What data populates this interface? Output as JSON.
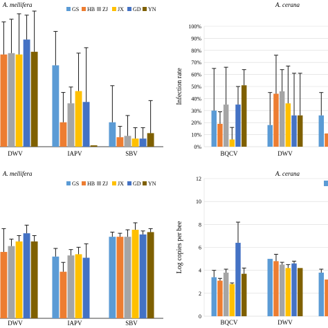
{
  "palette": {
    "GS": "#5b9bd5",
    "HB": "#ed7d31",
    "ZJ": "#a5a5a5",
    "JX": "#ffc000",
    "GD": "#4472c4",
    "YN": "#7f6000"
  },
  "chart_data": [
    {
      "id": "a",
      "type": "bar",
      "title": "A. mellifera",
      "ylabel": "",
      "ylim": [
        0,
        100
      ],
      "yticks": [],
      "legend": [
        "GS",
        "HB",
        "ZJ",
        "JX",
        "GD",
        "YN"
      ],
      "legend_position": "top-right",
      "categories": [
        "DWV",
        "IAPV",
        "SBV"
      ],
      "series": [
        {
          "name": "GS",
          "values": [
            62,
            60,
            18
          ],
          "errors": [
            37,
            25,
            27
          ]
        },
        {
          "name": "HB",
          "values": [
            68,
            18,
            7
          ],
          "errors": [
            24,
            22,
            8
          ]
        },
        {
          "name": "ZJ",
          "values": [
            69,
            32,
            8
          ],
          "errors": [
            25,
            12,
            15
          ]
        },
        {
          "name": "JX",
          "values": [
            68,
            41,
            6
          ],
          "errors": [
            30,
            28,
            8
          ]
        },
        {
          "name": "GD",
          "values": [
            79,
            33,
            6
          ],
          "errors": [
            18,
            40,
            8
          ]
        },
        {
          "name": "YN",
          "values": [
            70,
            1,
            10
          ],
          "errors": [
            30,
            0,
            24
          ]
        }
      ]
    },
    {
      "id": "b",
      "type": "bar",
      "title": "A. cerana",
      "ylabel": "Infection rate",
      "ylim": [
        0,
        100
      ],
      "yticks": [
        "0%",
        "10%",
        "20%",
        "30%",
        "40%",
        "50%",
        "60%",
        "70%",
        "80%",
        "90%",
        "100%"
      ],
      "legend": [],
      "categories": [
        "BQCV",
        "DWV",
        ""
      ],
      "series": [
        {
          "name": "",
          "values": [
            30,
            18,
            26
          ],
          "errors": [
            35,
            27,
            19
          ]
        },
        {
          "name": "",
          "values": [
            19,
            44,
            11
          ],
          "errors": [
            10,
            32,
            0
          ]
        },
        {
          "name": "",
          "values": [
            35,
            46,
            0
          ],
          "errors": [
            31,
            18,
            0
          ]
        },
        {
          "name": "",
          "values": [
            6,
            36,
            0
          ],
          "errors": [
            10,
            31,
            0
          ]
        },
        {
          "name": "",
          "values": [
            35,
            26,
            0
          ],
          "errors": [
            15,
            35,
            0
          ]
        },
        {
          "name": "",
          "values": [
            51,
            26,
            0
          ],
          "errors": [
            13,
            35,
            0
          ]
        }
      ]
    },
    {
      "id": "c",
      "type": "bar",
      "title": "A. mellifera",
      "ylabel": "",
      "ylim": [
        0,
        12
      ],
      "yticks": [],
      "legend": [
        "GS",
        "HB",
        "ZJ",
        "JX",
        "GD",
        "YN"
      ],
      "legend_position": "top-right",
      "categories": [
        "DWV",
        "IAPV",
        "SBV"
      ],
      "series": [
        {
          "name": "GS",
          "values": [
            6.4,
            5.3,
            7.0
          ],
          "errors": [
            0.8,
            0.7,
            0.4
          ]
        },
        {
          "name": "HB",
          "values": [
            5.7,
            4.0,
            7.0
          ],
          "errors": [
            2.0,
            0.8,
            0.3
          ]
        },
        {
          "name": "ZJ",
          "values": [
            6.2,
            5.4,
            7.0
          ],
          "errors": [
            0.6,
            0.5,
            0.6
          ]
        },
        {
          "name": "JX",
          "values": [
            6.6,
            5.5,
            7.6
          ],
          "errors": [
            0.5,
            0.6,
            0.6
          ]
        },
        {
          "name": "GD",
          "values": [
            7.3,
            5.2,
            7.2
          ],
          "errors": [
            0.7,
            1.2,
            0.3
          ]
        },
        {
          "name": "YN",
          "values": [
            6.6,
            0,
            7.4
          ],
          "errors": [
            0.5,
            0,
            0.3
          ]
        }
      ]
    },
    {
      "id": "d",
      "type": "bar",
      "title": "A. cerana",
      "ylabel": "Log copies per bee",
      "ylim": [
        0,
        12
      ],
      "yticks": [
        "0",
        "2",
        "4",
        "6",
        "8",
        "10",
        "12"
      ],
      "legend": [],
      "categories": [
        "BQCV",
        "DWV",
        ""
      ],
      "series": [
        {
          "name": "",
          "values": [
            3.4,
            5.0,
            3.8
          ],
          "errors": [
            0.6,
            0.0,
            0.3
          ]
        },
        {
          "name": "",
          "values": [
            3.1,
            4.8,
            3.2
          ],
          "errors": [
            0.2,
            0.6,
            0.0
          ]
        },
        {
          "name": "",
          "values": [
            3.8,
            4.5,
            0
          ],
          "errors": [
            0.3,
            0.2,
            0
          ]
        },
        {
          "name": "",
          "values": [
            2.8,
            4.2,
            0
          ],
          "errors": [
            0.1,
            0.3,
            0
          ]
        },
        {
          "name": "",
          "values": [
            6.4,
            4.6,
            0
          ],
          "errors": [
            1.8,
            0.2,
            0
          ]
        },
        {
          "name": "",
          "values": [
            3.7,
            4.2,
            0
          ],
          "errors": [
            0.5,
            0.0,
            0
          ]
        }
      ]
    }
  ]
}
